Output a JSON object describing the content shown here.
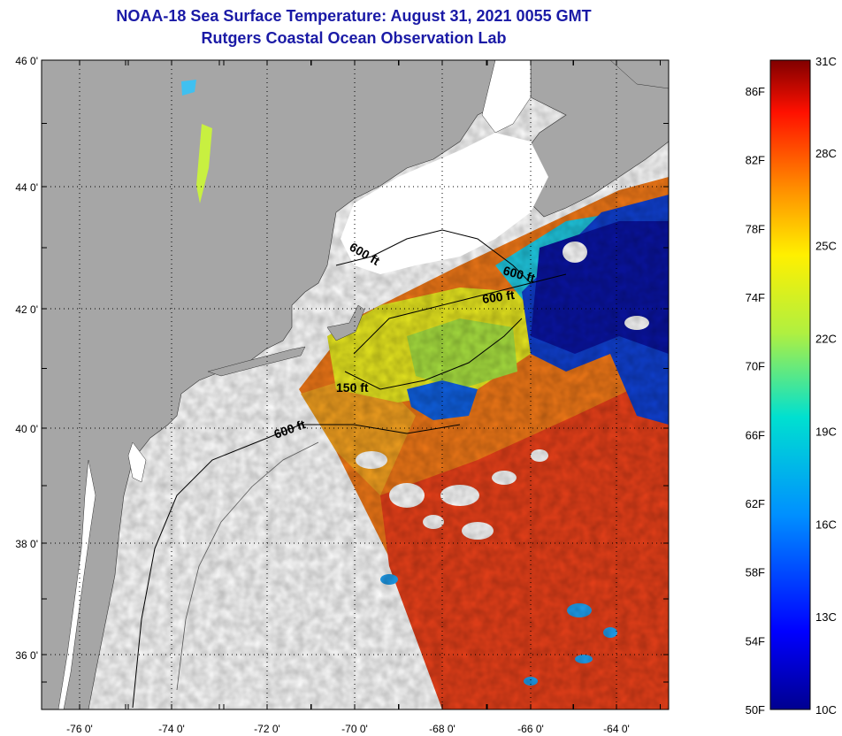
{
  "title": {
    "line1": "NOAA-18 Sea Surface Temperature:  August 31, 2021 0055 GMT",
    "line2": "Rutgers Coastal Ocean Observation Lab"
  },
  "map": {
    "lat_labels": [
      "46 0'",
      "44 0'",
      "42 0'",
      "40 0'",
      "38 0'",
      "36 0'"
    ],
    "lon_labels": [
      "-76 0'",
      "-74 0'",
      "-72 0'",
      "-70 0'",
      "-68 0'",
      "-66 0'",
      "-64 0'"
    ],
    "contour_labels": [
      "600 ft",
      "600 ft",
      "600 ft",
      "150 ft",
      "600 ft"
    ]
  },
  "colorbar": {
    "fahrenheit": [
      "86F",
      "82F",
      "78F",
      "74F",
      "70F",
      "66F",
      "62F",
      "58F",
      "54F",
      "50F"
    ],
    "celsius": [
      "31C",
      "28C",
      "25C",
      "22C",
      "19C",
      "16C",
      "13C",
      "10C"
    ]
  },
  "colors": {
    "title": "#1a1aa6",
    "land": "#a6a6a6",
    "no_data": "#ffffff",
    "warm": "#e63c14",
    "cold": "#0a14a0"
  }
}
